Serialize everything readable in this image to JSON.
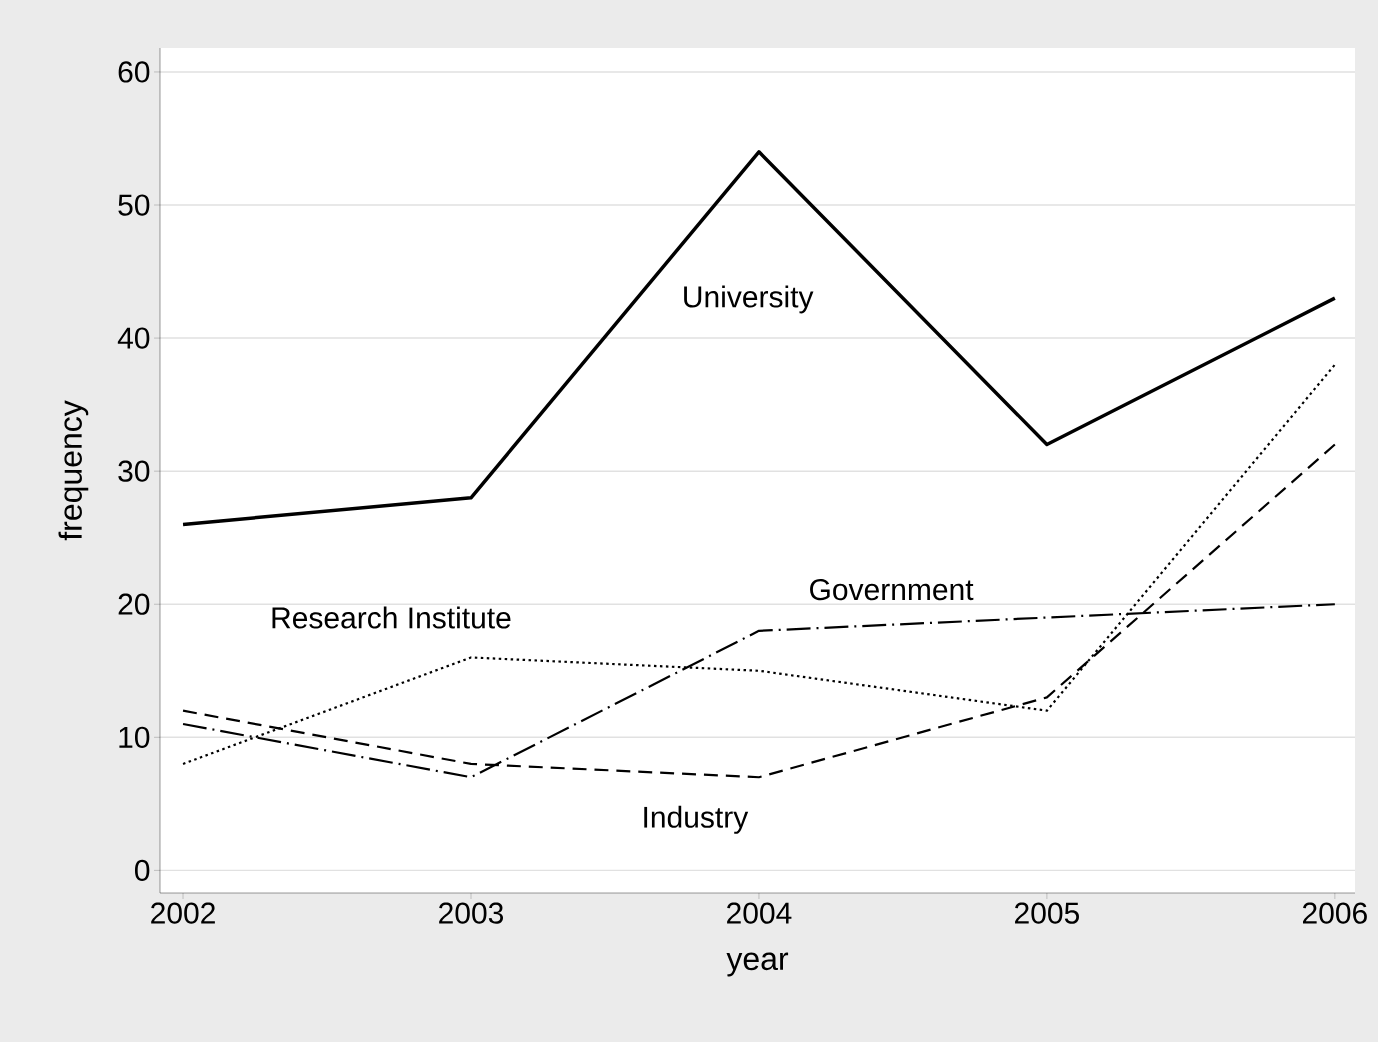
{
  "chart_data": {
    "type": "line",
    "xlabel": "year",
    "ylabel": "frequency",
    "x": [
      2002,
      2003,
      2004,
      2005,
      2006
    ],
    "series": [
      {
        "name": "University",
        "color": "#000000",
        "line_style": "solid",
        "values": [
          26,
          28,
          54,
          32,
          43
        ]
      },
      {
        "name": "Research Institute",
        "color": "#000000",
        "line_style": "dotted",
        "values": [
          8,
          16,
          15,
          12,
          38
        ]
      },
      {
        "name": "Industry",
        "color": "#000000",
        "line_style": "dashed",
        "values": [
          12,
          8,
          7,
          13,
          32
        ]
      },
      {
        "name": "Government",
        "color": "#000000",
        "line_style": "dashdot",
        "values": [
          11,
          7,
          18,
          19,
          20
        ]
      }
    ],
    "xlim": [
      2001.92,
      2006.07
    ],
    "ylim": [
      -1.7,
      61.8
    ],
    "xticks": [
      2002,
      2003,
      2004,
      2005,
      2006
    ],
    "yticks": [
      0,
      10,
      20,
      30,
      40,
      50,
      60
    ],
    "grid": "y"
  }
}
